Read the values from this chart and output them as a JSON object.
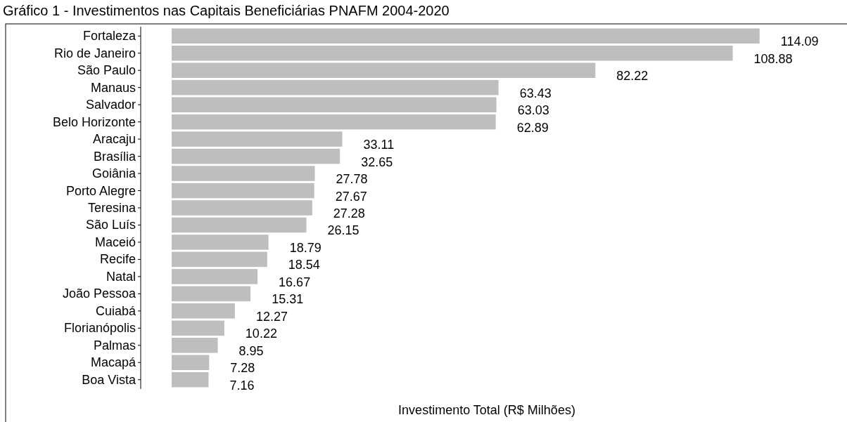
{
  "chart_data": {
    "type": "bar",
    "orientation": "horizontal",
    "title": "Gráfico 1 - Investimentos nas Capitais Beneficiárias PNAFM 2004-2020",
    "xlabel": "Investimento Total (R$ Milhões)",
    "categories": [
      "Fortaleza",
      "Rio de Janeiro",
      "São Paulo",
      "Manaus",
      "Salvador",
      "Belo Horizonte",
      "Aracaju",
      "Brasília",
      "Goiânia",
      "Porto Alegre",
      "Teresina",
      "São Luís",
      "Maceió",
      "Recife",
      "Natal",
      "João Pessoa",
      "Cuiabá",
      "Florianópolis",
      "Palmas",
      "Macapá",
      "Boa Vista"
    ],
    "values": [
      114.09,
      108.88,
      82.22,
      63.43,
      63.03,
      62.89,
      33.11,
      32.65,
      27.78,
      27.67,
      27.28,
      26.15,
      18.79,
      18.54,
      16.67,
      15.31,
      12.27,
      10.22,
      8.95,
      7.28,
      7.16
    ],
    "color": "#bebebe",
    "data_labels": true,
    "tick_labels": "y"
  }
}
